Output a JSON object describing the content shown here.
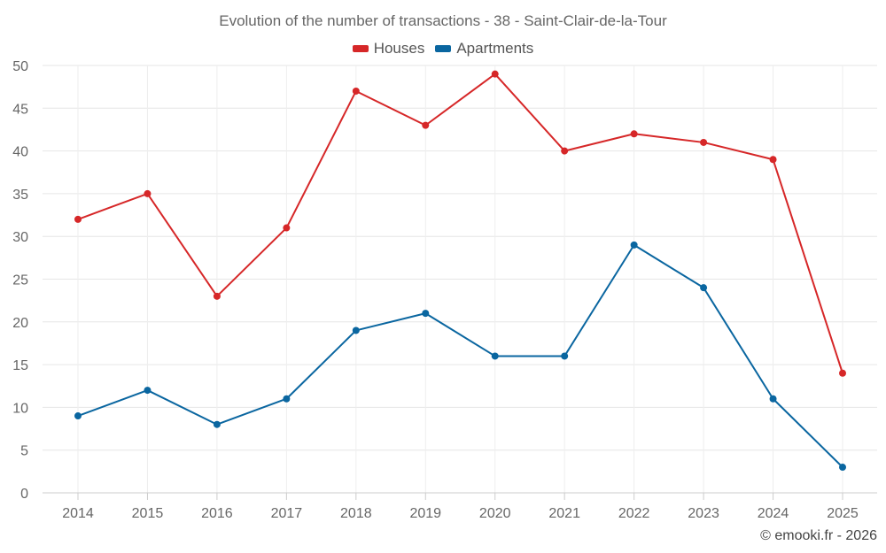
{
  "chart_data": {
    "type": "line",
    "title": "Evolution of the number of transactions - 38 - Saint-Clair-de-la-Tour",
    "categories": [
      "2014",
      "2015",
      "2016",
      "2017",
      "2018",
      "2019",
      "2020",
      "2021",
      "2022",
      "2023",
      "2024",
      "2025"
    ],
    "series": [
      {
        "name": "Houses",
        "color": "#d62728",
        "values": [
          32,
          35,
          23,
          31,
          47,
          43,
          49,
          40,
          42,
          41,
          39,
          14
        ]
      },
      {
        "name": "Apartments",
        "color": "#0a66a0",
        "values": [
          9,
          12,
          8,
          11,
          19,
          21,
          16,
          16,
          29,
          24,
          11,
          3
        ]
      }
    ],
    "ylim": [
      0,
      50
    ],
    "yticks": [
      0,
      5,
      10,
      15,
      20,
      25,
      30,
      35,
      40,
      45,
      50
    ],
    "grid": true,
    "legend_position": "top-center",
    "xlabel": "",
    "ylabel": ""
  },
  "credit": "© emooki.fr - 2026"
}
